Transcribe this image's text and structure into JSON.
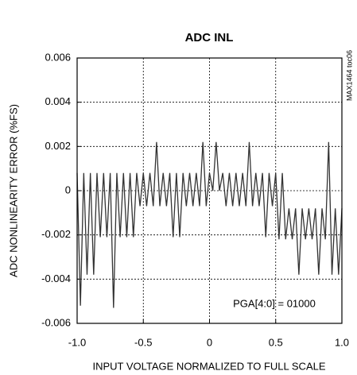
{
  "chart_data": {
    "type": "line",
    "title": "ADC INL",
    "x_label": "INPUT VOLTAGE NORMALIZED TO FULL SCALE",
    "y_label": "ADC NONLINEARITY ERROR (%FS)",
    "annotation": "PGA[4:0] = 01000",
    "side_note": "MAX1464 toc06",
    "color": "#333333",
    "grid": true,
    "x": [
      -1,
      -0.975,
      -0.95,
      -0.925,
      -0.9,
      -0.875,
      -0.85,
      -0.825,
      -0.8,
      -0.775,
      -0.75,
      -0.725,
      -0.7,
      -0.675,
      -0.65,
      -0.625,
      -0.6,
      -0.575,
      -0.55,
      -0.525,
      -0.5,
      -0.475,
      -0.45,
      -0.425,
      -0.4,
      -0.375,
      -0.35,
      -0.325,
      -0.3,
      -0.275,
      -0.25,
      -0.225,
      -0.2,
      -0.175,
      -0.15,
      -0.125,
      -0.1,
      -0.075,
      -0.05,
      -0.025,
      0,
      0.025,
      0.05,
      0.075,
      0.1,
      0.125,
      0.15,
      0.175,
      0.2,
      0.225,
      0.25,
      0.275,
      0.3,
      0.325,
      0.35,
      0.375,
      0.4,
      0.425,
      0.45,
      0.475,
      0.5,
      0.525,
      0.55,
      0.575,
      0.6,
      0.625,
      0.65,
      0.675,
      0.7,
      0.725,
      0.75,
      0.775,
      0.8,
      0.825,
      0.85,
      0.875,
      0.9,
      0.925,
      0.95,
      0.975,
      1
    ],
    "values": [
      0.0008,
      -0.0052,
      0.0008,
      -0.0038,
      0.0008,
      -0.0038,
      0.0008,
      -0.0021,
      0.0008,
      -0.0021,
      0.0008,
      -0.0053,
      0.0008,
      -0.0021,
      0.0008,
      -0.0021,
      0.0008,
      -0.0021,
      0.0008,
      -0.0007,
      0.0008,
      -0.0007,
      0.0008,
      -0.0007,
      0.0022,
      -0.0007,
      0.0008,
      -0.0007,
      0.0008,
      -0.0021,
      0.0008,
      -0.0021,
      0.0008,
      -0.0007,
      0.0008,
      -0.0007,
      0.0008,
      -0.0007,
      0.0022,
      -0.0007,
      0.0008,
      0,
      0.0022,
      0,
      0.0008,
      -0.0007,
      0.0008,
      -0.0007,
      0.0008,
      -0.0007,
      0.0008,
      -0.0007,
      0.0022,
      -0.0007,
      0.0008,
      -0.0007,
      0.0008,
      -0.0021,
      0.0008,
      -0.0007,
      0.0008,
      -0.0022,
      0.0008,
      -0.0022,
      -0.0008,
      -0.0022,
      -0.0008,
      -0.0038,
      -0.0008,
      -0.0022,
      -0.0008,
      -0.0022,
      -0.0008,
      -0.0038,
      -0.0008,
      -0.0022,
      0.0022,
      -0.0038,
      -0.0008,
      -0.0038,
      -0.0008
    ],
    "xlim": [
      -1,
      1
    ],
    "xticks": [
      {
        "value": -1,
        "label": "-1.0"
      },
      -0.5,
      0,
      0.5,
      {
        "value": 1,
        "label": "1.0"
      }
    ],
    "ylim": [
      -0.006,
      0.006
    ],
    "yticks": [
      -0.006,
      -0.004,
      -0.002,
      0,
      0.002,
      0.004,
      0.006
    ]
  }
}
